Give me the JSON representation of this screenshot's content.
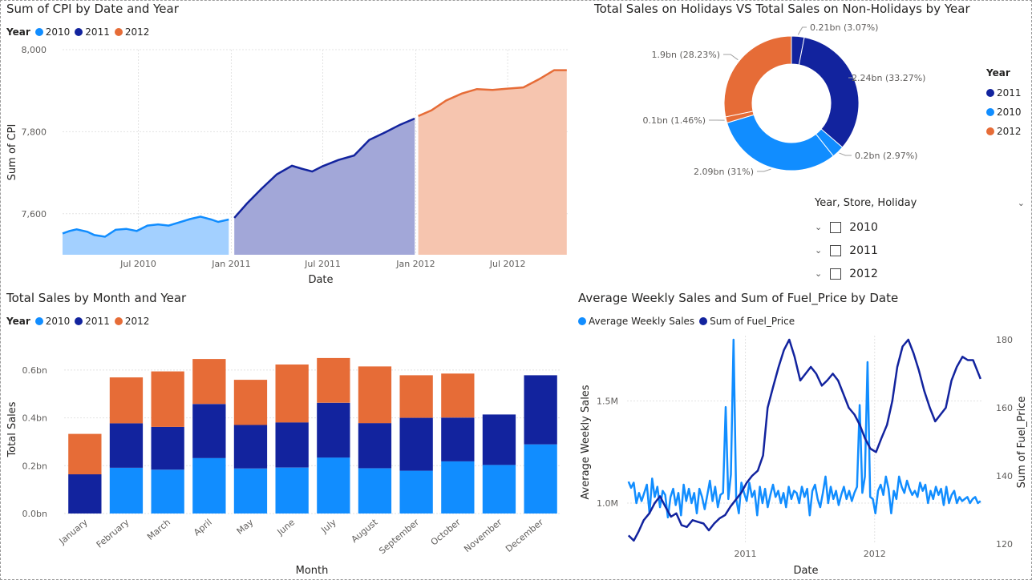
{
  "chart_data": [
    {
      "id": "cpi",
      "type": "area",
      "title": "Sum of CPI by Date and Year",
      "legend_title": "Year",
      "xlabel": "Date",
      "ylabel": "Sum of CPI",
      "ylim": [
        7500,
        8000
      ],
      "yticks": [
        7600,
        7800,
        8000
      ],
      "ytick_labels": [
        "7,600",
        "7,800",
        "8,000"
      ],
      "xlim": [
        "2010-02-01",
        "2012-10-31"
      ],
      "xticks": [
        {
          "date": "2010-07-01",
          "label": "Jul 2010"
        },
        {
          "date": "2011-01-01",
          "label": "Jan 2011"
        },
        {
          "date": "2011-07-01",
          "label": "Jul 2011"
        },
        {
          "date": "2012-01-01",
          "label": "Jan 2012"
        },
        {
          "date": "2012-07-01",
          "label": "Jul 2012"
        }
      ],
      "series": [
        {
          "name": "2010",
          "color": "#118DFF",
          "fill": "#A3D0FF",
          "points": [
            [
              "2010-02-01",
              7552
            ],
            [
              "2010-02-15",
              7558
            ],
            [
              "2010-03-01",
              7562
            ],
            [
              "2010-03-22",
              7556
            ],
            [
              "2010-04-05",
              7548
            ],
            [
              "2010-04-26",
              7544
            ],
            [
              "2010-05-17",
              7561
            ],
            [
              "2010-06-07",
              7563
            ],
            [
              "2010-06-28",
              7558
            ],
            [
              "2010-07-19",
              7571
            ],
            [
              "2010-08-09",
              7574
            ],
            [
              "2010-08-30",
              7571
            ],
            [
              "2010-09-20",
              7579
            ],
            [
              "2010-10-11",
              7587
            ],
            [
              "2010-11-01",
              7593
            ],
            [
              "2010-11-22",
              7586
            ],
            [
              "2010-12-06",
              7580
            ],
            [
              "2010-12-27",
              7586
            ]
          ]
        },
        {
          "name": "2011",
          "color": "#12239E",
          "fill": "#A2A7D8",
          "points": [
            [
              "2011-01-07",
              7590
            ],
            [
              "2011-02-01",
              7625
            ],
            [
              "2011-03-01",
              7660
            ],
            [
              "2011-04-01",
              7696
            ],
            [
              "2011-05-01",
              7717
            ],
            [
              "2011-05-20",
              7710
            ],
            [
              "2011-06-10",
              7703
            ],
            [
              "2011-07-01",
              7716
            ],
            [
              "2011-08-01",
              7731
            ],
            [
              "2011-09-01",
              7742
            ],
            [
              "2011-10-01",
              7780
            ],
            [
              "2011-11-01",
              7798
            ],
            [
              "2011-12-01",
              7817
            ],
            [
              "2011-12-30",
              7832
            ]
          ]
        },
        {
          "name": "2012",
          "color": "#E66C37",
          "fill": "#F6C5AF",
          "points": [
            [
              "2012-01-06",
              7838
            ],
            [
              "2012-02-01",
              7852
            ],
            [
              "2012-03-01",
              7876
            ],
            [
              "2012-04-01",
              7893
            ],
            [
              "2012-05-01",
              7904
            ],
            [
              "2012-06-01",
              7902
            ],
            [
              "2012-07-01",
              7905
            ],
            [
              "2012-08-01",
              7908
            ],
            [
              "2012-09-01",
              7928
            ],
            [
              "2012-10-01",
              7950
            ],
            [
              "2012-10-26",
              7950
            ]
          ]
        }
      ]
    },
    {
      "id": "donut",
      "type": "pie",
      "title": "Total Sales on Holidays VS Total Sales on Non-Holidays by Year",
      "legend_title": "Year",
      "legend": [
        {
          "name": "2011",
          "color": "#12239E"
        },
        {
          "name": "2010",
          "color": "#118DFF"
        },
        {
          "name": "2012",
          "color": "#E66C37"
        }
      ],
      "slices": [
        {
          "label": "0.21bn (3.07%)",
          "value": 0.21,
          "percent": 3.07,
          "year": "2011",
          "color": "#12239E"
        },
        {
          "label": "2.24bn (33.27%)",
          "value": 2.24,
          "percent": 33.27,
          "year": "2011",
          "color": "#12239E"
        },
        {
          "label": "0.2bn (2.97%)",
          "value": 0.2,
          "percent": 2.97,
          "year": "2010",
          "color": "#118DFF"
        },
        {
          "label": "2.09bn (31%)",
          "value": 2.09,
          "percent": 31.0,
          "year": "2010",
          "color": "#118DFF"
        },
        {
          "label": "0.1bn (1.46%)",
          "value": 0.1,
          "percent": 1.46,
          "year": "2012",
          "color": "#E66C37"
        },
        {
          "label": "1.9bn (28.23%)",
          "value": 1.9,
          "percent": 28.23,
          "year": "2012",
          "color": "#E66C37"
        }
      ]
    },
    {
      "id": "bars",
      "type": "bar",
      "stacked": true,
      "title": "Total Sales by Month and Year",
      "legend_title": "Year",
      "xlabel": "Month",
      "ylabel": "Total Sales",
      "ylim": [
        0,
        0.7
      ],
      "yticks": [
        0,
        0.2,
        0.4,
        0.6
      ],
      "ytick_labels": [
        "0.0bn",
        "0.2bn",
        "0.4bn",
        "0.6bn"
      ],
      "categories": [
        "January",
        "February",
        "March",
        "April",
        "May",
        "June",
        "July",
        "August",
        "September",
        "October",
        "November",
        "December"
      ],
      "series": [
        {
          "name": "2010",
          "color": "#118DFF",
          "values": [
            0,
            0.191,
            0.183,
            0.232,
            0.188,
            0.192,
            0.234,
            0.189,
            0.179,
            0.218,
            0.203,
            0.289
          ]
        },
        {
          "name": "2011",
          "color": "#12239E",
          "values": [
            0.164,
            0.186,
            0.179,
            0.226,
            0.182,
            0.189,
            0.229,
            0.189,
            0.221,
            0.183,
            0.211,
            0.289
          ]
        },
        {
          "name": "2012",
          "color": "#E66C37",
          "values": [
            0.169,
            0.192,
            0.232,
            0.188,
            0.189,
            0.242,
            0.187,
            0.237,
            0.178,
            0.184,
            0,
            0
          ]
        }
      ]
    },
    {
      "id": "combo",
      "type": "line",
      "title": "Average Weekly Sales and Sum of Fuel_Price by Date",
      "xlabel": "Date",
      "ylabel": "Average Weekly Sales",
      "y2label": "Sum of Fuel_Price",
      "ylim": [
        800000,
        1800000
      ],
      "yticks": [
        1000000,
        1500000
      ],
      "ytick_labels": [
        "1.0M",
        "1.5M"
      ],
      "y2lim": [
        120,
        180
      ],
      "y2ticks": [
        120,
        140,
        160,
        180
      ],
      "y2tick_labels": [
        "120",
        "140",
        "160",
        "180"
      ],
      "xlim": [
        "2010-02-01",
        "2012-10-31"
      ],
      "xticks": [
        {
          "date": "2011-01-01",
          "label": "2011"
        },
        {
          "date": "2012-01-01",
          "label": "2012"
        }
      ],
      "series": [
        {
          "name": "Average Weekly Sales",
          "axis": "left",
          "color": "#118DFF",
          "values": [
            1105000,
            1075000,
            1100000,
            1000000,
            1050000,
            1010000,
            1050000,
            1090000,
            950000,
            1120000,
            1030000,
            1080000,
            980000,
            1060000,
            1040000,
            930000,
            1030000,
            1070000,
            990000,
            1050000,
            940000,
            1090000,
            1010000,
            1070000,
            1000000,
            1050000,
            950000,
            1070000,
            1030000,
            970000,
            1040000,
            1110000,
            1010000,
            1080000,
            980000,
            1040000,
            1050000,
            1470000,
            1020000,
            1140000,
            1800000,
            1020000,
            950000,
            1100000,
            1050000,
            1010000,
            1100000,
            1030000,
            1060000,
            940000,
            1080000,
            1000000,
            1070000,
            980000,
            1040000,
            1090000,
            1030000,
            1060000,
            1000000,
            1050000,
            980000,
            1080000,
            1020000,
            1060000,
            1050000,
            1000000,
            1080000,
            1030000,
            1070000,
            940000,
            1060000,
            1090000,
            1020000,
            980000,
            1050000,
            1130000,
            1000000,
            1080000,
            1020000,
            1060000,
            990000,
            1040000,
            1080000,
            1020000,
            1060000,
            1010000,
            1050000,
            1080000,
            1480000,
            1050000,
            1130000,
            1690000,
            1030000,
            1020000,
            950000,
            1060000,
            1090000,
            1040000,
            1130000,
            1070000,
            950000,
            1060000,
            1020000,
            1130000,
            1080000,
            1050000,
            1110000,
            1070000,
            1040000,
            1060000,
            1030000,
            1100000,
            1060000,
            1090000,
            1000000,
            1060000,
            1020000,
            1080000,
            1040000,
            1070000,
            990000,
            1080000,
            1000000,
            1040000,
            1060000,
            1000000,
            1030000,
            1010000,
            1020000,
            1030000,
            1000000,
            1020000,
            1030000,
            1000000,
            1010000
          ]
        },
        {
          "name": "Sum of Fuel_Price",
          "axis": "right",
          "color": "#12239E",
          "points": [
            [
              "2010-02-05",
              122.5
            ],
            [
              "2010-02-20",
              121.0
            ],
            [
              "2010-03-05",
              123.5
            ],
            [
              "2010-03-20",
              127.0
            ],
            [
              "2010-04-05",
              129.0
            ],
            [
              "2010-04-20",
              132.0
            ],
            [
              "2010-05-05",
              134.0
            ],
            [
              "2010-05-20",
              131.0
            ],
            [
              "2010-06-05",
              128.0
            ],
            [
              "2010-06-20",
              129.0
            ],
            [
              "2010-07-05",
              125.5
            ],
            [
              "2010-07-20",
              125.0
            ],
            [
              "2010-08-05",
              127.0
            ],
            [
              "2010-08-20",
              126.5
            ],
            [
              "2010-09-05",
              126.0
            ],
            [
              "2010-09-20",
              124.0
            ],
            [
              "2010-10-05",
              126.0
            ],
            [
              "2010-10-20",
              127.5
            ],
            [
              "2010-11-05",
              128.5
            ],
            [
              "2010-11-20",
              131.0
            ],
            [
              "2010-12-05",
              133.0
            ],
            [
              "2010-12-20",
              135.0
            ],
            [
              "2011-01-05",
              138.0
            ],
            [
              "2011-01-20",
              140.0
            ],
            [
              "2011-02-05",
              141.5
            ],
            [
              "2011-02-20",
              146.0
            ],
            [
              "2011-03-05",
              160.0
            ],
            [
              "2011-03-20",
              166.0
            ],
            [
              "2011-04-05",
              172.0
            ],
            [
              "2011-04-20",
              177.0
            ],
            [
              "2011-05-05",
              180.0
            ],
            [
              "2011-05-20",
              175.0
            ],
            [
              "2011-06-05",
              168.0
            ],
            [
              "2011-06-20",
              170.0
            ],
            [
              "2011-07-05",
              172.0
            ],
            [
              "2011-07-20",
              170.0
            ],
            [
              "2011-08-05",
              166.5
            ],
            [
              "2011-08-20",
              168.0
            ],
            [
              "2011-09-05",
              170.0
            ],
            [
              "2011-09-20",
              168.0
            ],
            [
              "2011-10-05",
              164.0
            ],
            [
              "2011-10-20",
              160.0
            ],
            [
              "2011-11-05",
              158.0
            ],
            [
              "2011-11-20",
              155.0
            ],
            [
              "2011-12-05",
              151.0
            ],
            [
              "2011-12-20",
              148.0
            ],
            [
              "2012-01-05",
              147.0
            ],
            [
              "2012-01-20",
              151.0
            ],
            [
              "2012-02-05",
              155.0
            ],
            [
              "2012-02-20",
              162.0
            ],
            [
              "2012-03-05",
              172.0
            ],
            [
              "2012-03-20",
              178.0
            ],
            [
              "2012-04-05",
              180.0
            ],
            [
              "2012-04-20",
              176.0
            ],
            [
              "2012-05-05",
              171.0
            ],
            [
              "2012-05-20",
              165.0
            ],
            [
              "2012-06-05",
              160.0
            ],
            [
              "2012-06-20",
              156.0
            ],
            [
              "2012-07-05",
              158.0
            ],
            [
              "2012-07-20",
              160.0
            ],
            [
              "2012-08-05",
              168.0
            ],
            [
              "2012-08-20",
              172.0
            ],
            [
              "2012-09-05",
              175.0
            ],
            [
              "2012-09-20",
              174.0
            ],
            [
              "2012-10-05",
              174.0
            ],
            [
              "2012-10-26",
              168.5
            ]
          ]
        }
      ]
    }
  ],
  "slicer": {
    "title": "Year, Store, Holiday",
    "items": [
      "2010",
      "2011",
      "2012"
    ]
  }
}
